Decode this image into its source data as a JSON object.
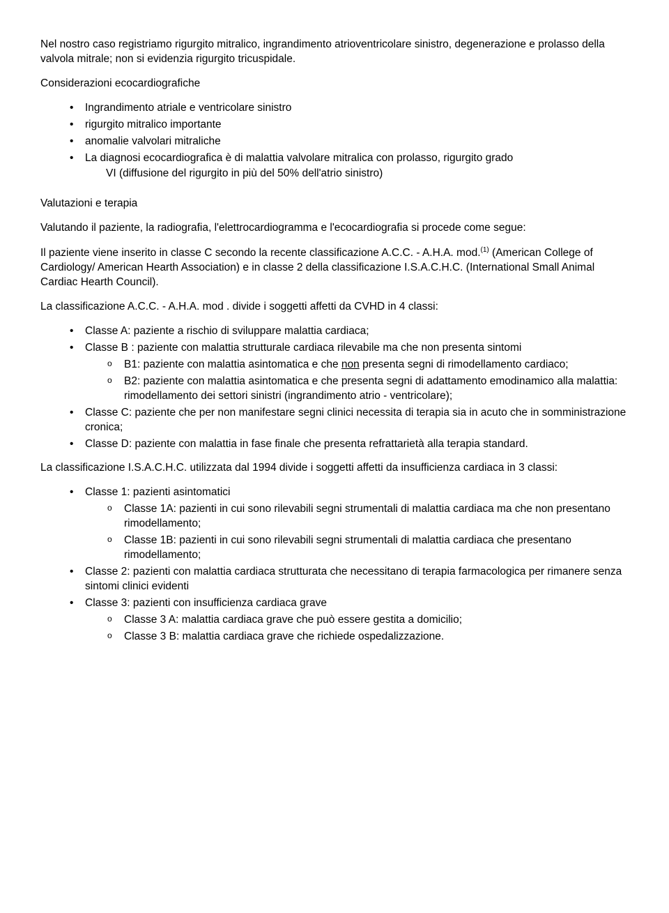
{
  "intro": {
    "p1": "Nel nostro caso registriamo rigurgito mitralico, ingrandimento atrioventricolare sinistro, degenerazione e prolasso della valvola mitrale; non si evidenzia rigurgito tricuspidale.",
    "p2": "Considerazioni ecocardiografiche",
    "bullets": [
      "Ingrandimento atriale e ventricolare sinistro",
      " rigurgito mitralico importante",
      " anomalie valvolari mitraliche",
      "La diagnosi ecocardiografica è di malattia valvolare mitralica con prolasso, rigurgito grado"
    ],
    "bullets_cont": "VI (diffusione del rigurgito in più del 50% dell'atrio sinistro)"
  },
  "valut": {
    "heading": "Valutazioni e terapia",
    "p1": "Valutando il paziente, la radiografia, l'elettrocardiogramma e l'ecocardiografia si procede come segue:",
    "p2a": "Il paziente viene inserito in classe C secondo la recente classificazione  A.C.C. - A.H.A. mod.",
    "sup": "(1)",
    "p2b": " (American College of Cardiology/ American Hearth Association) e in classe 2 della classificazione I.S.A.C.H.C. (International Small Animal Cardiac Hearth Council).",
    "p3": "La classificazione A.C.C. - A.H.A. mod . divide i soggetti affetti da CVHD in 4 classi:"
  },
  "classi_acc": {
    "a": "Classe A: paziente a rischio di sviluppare malattia cardiaca;",
    "b": "Classe B : paziente con malattia strutturale cardiaca rilevabile ma che non presenta sintomi",
    "b1a": "B1: paziente con malattia asintomatica e che ",
    "b1_underline": "non",
    "b1b": " presenta segni di rimodellamento cardiaco;",
    "b2": "B2: paziente con malattia asintomatica e che presenta segni di adattamento emodinamico alla malattia: rimodellamento dei settori sinistri (ingrandimento atrio - ventricolare);",
    "c": "Classe C: paziente che per non manifestare segni clinici necessita di terapia sia in acuto che in somministrazione cronica;",
    "d": "Classe D: paziente con malattia in fase finale che presenta refrattarietà alla terapia standard."
  },
  "isachc": {
    "p1": "La classificazione I.S.A.C.H.C. utilizzata dal 1994 divide i soggetti affetti da insufficienza cardiaca in 3 classi:",
    "c1": "Classe 1: pazienti asintomatici",
    "c1a": "Classe 1A: pazienti in cui sono rilevabili segni strumentali di malattia cardiaca ma che non presentano rimodellamento;",
    "c1b": "Classe 1B: pazienti in cui sono rilevabili segni strumentali di malattia cardiaca che presentano rimodellamento;",
    "c2": "Classe 2: pazienti con malattia cardiaca strutturata che necessitano di terapia farmacologica per rimanere senza sintomi clinici evidenti",
    "c3": "Classe 3: pazienti con insufficienza cardiaca grave",
    "c3a": "Classe 3 A: malattia cardiaca grave che può essere gestita a domicilio;",
    "c3b": "Classe 3 B: malattia cardiaca grave che richiede ospedalizzazione."
  }
}
